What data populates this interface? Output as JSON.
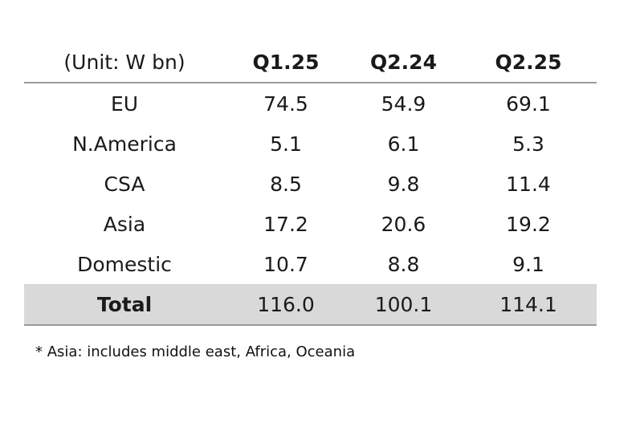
{
  "chart_data": {
    "type": "table",
    "unit_label": "(Unit: W bn)",
    "columns": [
      "Q1.25",
      "Q2.24",
      "Q2.25"
    ],
    "rows": [
      {
        "label": "EU",
        "values": [
          "74.5",
          "54.9",
          "69.1"
        ]
      },
      {
        "label": "N.America",
        "values": [
          "5.1",
          "6.1",
          "5.3"
        ]
      },
      {
        "label": "CSA",
        "values": [
          "8.5",
          "9.8",
          "11.4"
        ]
      },
      {
        "label": "Asia",
        "values": [
          "17.2",
          "20.6",
          "19.2"
        ]
      },
      {
        "label": "Domestic",
        "values": [
          "10.7",
          "8.8",
          "9.1"
        ]
      }
    ],
    "total": {
      "label": "Total",
      "values": [
        "116.0",
        "100.1",
        "114.1"
      ]
    },
    "footnote": "* Asia: includes middle east, Africa, Oceania"
  }
}
